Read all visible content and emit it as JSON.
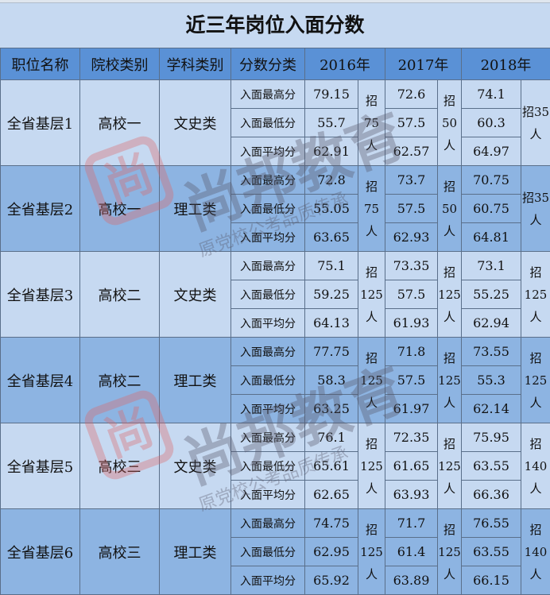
{
  "title": "近三年岗位入面分数",
  "headers": [
    "职位名称",
    "院校类别",
    "学科类别",
    "分数分类",
    "2016年",
    "2017年",
    "2018年"
  ],
  "score_types": [
    "入面最高分",
    "入面最低分",
    "入面平均分"
  ],
  "rows": [
    {
      "position": "全省基层1",
      "school": "高校一",
      "subject": "文史类",
      "y2016": {
        "scores": [
          "79.15",
          "55.7",
          "62.91"
        ],
        "quota": "招75人"
      },
      "y2017": {
        "scores": [
          "72.6",
          "57.5",
          "62.57"
        ],
        "quota": "招50人"
      },
      "y2018": {
        "scores": [
          "74.1",
          "60.3",
          "64.97"
        ],
        "quota": "招35人"
      }
    },
    {
      "position": "全省基层2",
      "school": "高校一",
      "subject": "理工类",
      "y2016": {
        "scores": [
          "72.8",
          "55.05",
          "63.65"
        ],
        "quota": "招75人"
      },
      "y2017": {
        "scores": [
          "73.7",
          "57.5",
          "62.93"
        ],
        "quota": "招50人"
      },
      "y2018": {
        "scores": [
          "70.75",
          "60.75",
          "64.81"
        ],
        "quota": "招35人"
      }
    },
    {
      "position": "全省基层3",
      "school": "高校二",
      "subject": "文史类",
      "y2016": {
        "scores": [
          "75.1",
          "59.25",
          "64.13"
        ],
        "quota": "招125人"
      },
      "y2017": {
        "scores": [
          "73.35",
          "57.5",
          "61.93"
        ],
        "quota": "招125人"
      },
      "y2018": {
        "scores": [
          "73.1",
          "55.25",
          "62.94"
        ],
        "quota": "招125人"
      }
    },
    {
      "position": "全省基层4",
      "school": "高校二",
      "subject": "理工类",
      "y2016": {
        "scores": [
          "77.75",
          "58.3",
          "63.25"
        ],
        "quota": "招125人"
      },
      "y2017": {
        "scores": [
          "71.8",
          "57.5",
          "61.97"
        ],
        "quota": "招125人"
      },
      "y2018": {
        "scores": [
          "73.55",
          "55.3",
          "62.14"
        ],
        "quota": "招125人"
      }
    },
    {
      "position": "全省基层5",
      "school": "高校三",
      "subject": "文史类",
      "y2016": {
        "scores": [
          "76.1",
          "65.61",
          "62.65"
        ],
        "quota": "招125人"
      },
      "y2017": {
        "scores": [
          "72.35",
          "61.65",
          "63.93"
        ],
        "quota": "招125人"
      },
      "y2018": {
        "scores": [
          "75.95",
          "63.55",
          "66.36"
        ],
        "quota": "招140人"
      }
    },
    {
      "position": "全省基层6",
      "school": "高校三",
      "subject": "理工类",
      "y2016": {
        "scores": [
          "74.75",
          "62.95",
          "65.92"
        ],
        "quota": "招125人"
      },
      "y2017": {
        "scores": [
          "71.7",
          "61.4",
          "63.89"
        ],
        "quota": "招125人"
      },
      "y2018": {
        "scores": [
          "76.55",
          "63.55",
          "66.15"
        ],
        "quota": "招140人"
      }
    }
  ],
  "watermark": {
    "brand": "尚邦教育",
    "tagline": "原党校公考品质传承",
    "logo_char": "尚"
  },
  "colors": {
    "header": "#5a91d6",
    "light_row": "#c6d9f1",
    "dark_row": "#8db4e2",
    "watermark_logo": "#d66666"
  }
}
